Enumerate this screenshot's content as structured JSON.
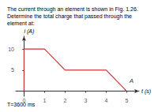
{
  "chart_data": {
    "type": "line",
    "title": "The current through an element is shown in Fig. 1.26.\nDetermine the total charge that passed through the\nelement at:",
    "footer": "T=3600 ms",
    "x_label": "t (s)",
    "y_label": "i (A)",
    "x": [
      0,
      0,
      1,
      2,
      4,
      5
    ],
    "values": [
      0,
      10,
      10,
      5,
      5,
      0
    ],
    "color": "#cc3333",
    "xlim": [
      -0.4,
      5.6
    ],
    "ylim": [
      -1.2,
      13
    ],
    "xticks": [
      0,
      1,
      2,
      3,
      4,
      5
    ],
    "yticks": [
      5,
      10
    ],
    "grid": false,
    "annotations": [
      {
        "text": "A",
        "x": 5.0,
        "y": 0.3
      }
    ]
  }
}
